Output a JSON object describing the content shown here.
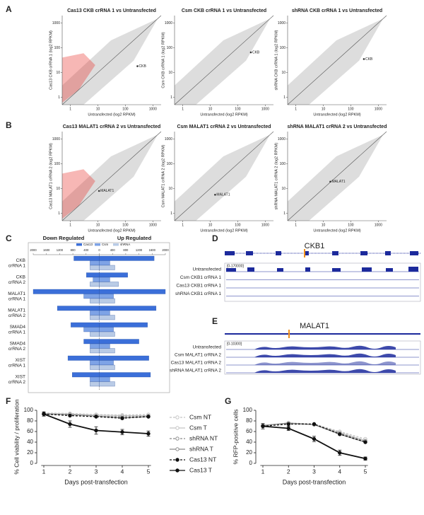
{
  "panel_labels": [
    "A",
    "B",
    "C",
    "D",
    "E",
    "F",
    "G"
  ],
  "chart_data": [
    {
      "type": "scatter",
      "title": "Cas13 CKB crRNA 1 vs Untransfected",
      "x_label": "Untransfected (log2 RPKM)",
      "y_label": "Cas13 CKB crRNA 1 (log2 RPKM)",
      "log_scale": true,
      "xlim": [
        0.5,
        2000
      ],
      "ylim": [
        0.5,
        2000
      ],
      "xticks": [
        1,
        10,
        100,
        1000
      ],
      "yticks": [
        1,
        10,
        100,
        1000
      ],
      "outlier_color": "#e8302a",
      "x": [
        275
      ],
      "values": [
        18
      ],
      "point_labels": [
        "CKB"
      ]
    },
    {
      "type": "scatter",
      "title": "Csm CKB crRNA 1 vs Untransfected",
      "x_label": "Untransfected (log2 RPKM)",
      "y_label": "Csm CKB crRNA 1 (log2 RPKM)",
      "log_scale": true,
      "xlim": [
        0.5,
        2000
      ],
      "ylim": [
        0.5,
        2000
      ],
      "xticks": [
        1,
        10,
        100,
        1000
      ],
      "yticks": [
        1,
        10,
        100,
        1000
      ],
      "x": [
        300
      ],
      "values": [
        65
      ],
      "point_labels": [
        "CKB"
      ]
    },
    {
      "type": "scatter",
      "title": "shRNA CKB crRNA 1 vs Untransfected",
      "x_label": "Untransfected (log2 RPKM)",
      "y_label": "shRNA CKB crRNA 1 (log2 RPKM)",
      "log_scale": true,
      "xlim": [
        0.5,
        2000
      ],
      "ylim": [
        0.5,
        2000
      ],
      "xticks": [
        1,
        10,
        100,
        1000
      ],
      "yticks": [
        1,
        10,
        100,
        1000
      ],
      "x": [
        300
      ],
      "values": [
        35
      ],
      "point_labels": [
        "CKB"
      ]
    },
    {
      "type": "scatter",
      "title": "Cas13 MALAT1 crRNA 2 vs Untransfected",
      "x_label": "Untransfected (log2 RPKM)",
      "y_label": "Cas13 MALAT1 crRNA 2 (log2 RPKM)",
      "log_scale": true,
      "xlim": [
        0.5,
        2000
      ],
      "ylim": [
        0.5,
        2000
      ],
      "xticks": [
        1,
        10,
        100,
        1000
      ],
      "yticks": [
        1,
        10,
        100,
        1000
      ],
      "outlier_color": "#e8302a",
      "x": [
        11
      ],
      "values": [
        8
      ],
      "point_labels": [
        "MALAT1"
      ]
    },
    {
      "type": "scatter",
      "title": "Csm MALAT1 crRNA 2 vs Untransfected",
      "x_label": "Untransfected (log2 RPKM)",
      "y_label": "Csm MALAT1 crRNA 2 (log2 RPKM)",
      "log_scale": true,
      "xlim": [
        0.5,
        2000
      ],
      "ylim": [
        0.5,
        2000
      ],
      "xticks": [
        1,
        10,
        100,
        1000
      ],
      "yticks": [
        1,
        10,
        100,
        1000
      ],
      "x": [
        15
      ],
      "values": [
        5.6
      ],
      "point_labels": [
        "MALAT1"
      ]
    },
    {
      "type": "scatter",
      "title": "shRNA MALAT1 crRNA 2 vs Untransfected",
      "x_label": "Untransfected (log2 RPKM)",
      "y_label": "shRNA MALAT1 crRNA 2 (log2 RPKM)",
      "log_scale": true,
      "xlim": [
        0.5,
        2000
      ],
      "ylim": [
        0.5,
        2000
      ],
      "xticks": [
        1,
        10,
        100,
        1000
      ],
      "yticks": [
        1,
        10,
        100,
        1000
      ],
      "x": [
        18
      ],
      "values": [
        19
      ],
      "point_labels": [
        "MALAT1"
      ]
    },
    {
      "type": "butterfly",
      "left_label": "Down Regulated",
      "right_label": "Up Regulated",
      "categories": [
        [
          "CKB",
          "crRNA 1"
        ],
        [
          "CKB",
          "crRNA 2"
        ],
        [
          "MALAT1",
          "crRNA 1"
        ],
        [
          "MALAT1",
          "crRNA 2"
        ],
        [
          "SMAD4",
          "crRNA 1"
        ],
        [
          "SMAD4",
          "crRNA 2"
        ],
        [
          "XIST",
          "crRNA 1"
        ],
        [
          "XIST",
          "crRNA 2"
        ]
      ],
      "xlim": [
        -2000,
        2000
      ],
      "xticks": [
        {
          "value": -2000,
          "label": "2000"
        },
        {
          "value": -1600,
          "label": "1600"
        },
        {
          "value": -1200,
          "label": "1200"
        },
        {
          "value": -800,
          "label": "800"
        },
        {
          "value": -400,
          "label": "400"
        },
        0,
        400,
        800,
        1200,
        1600,
        2000
      ],
      "series": [
        {
          "name": "Cas13",
          "color": "#3b6fd9",
          "down": [
            770,
            390,
            2000,
            1270,
            860,
            470,
            950,
            820
          ],
          "up": [
            1660,
            860,
            2000,
            1720,
            1460,
            1200,
            1500,
            1550
          ]
        },
        {
          "name": "Csm",
          "color": "#7ea3e6",
          "down": [
            280,
            190,
            470,
            280,
            470,
            280,
            280,
            280
          ],
          "up": [
            320,
            320,
            430,
            320,
            430,
            320,
            430,
            320
          ]
        },
        {
          "name": "shRNA",
          "color": "#b9cbe6",
          "down": [
            280,
            280,
            280,
            280,
            280,
            280,
            280,
            280
          ],
          "up": [
            470,
            580,
            470,
            470,
            470,
            470,
            470,
            470
          ]
        }
      ]
    },
    {
      "type": "line",
      "y_label": "% Cell viability / proliferation",
      "x_label": "Days post-transfection",
      "legend": "right",
      "x": [
        1,
        2,
        3,
        4,
        5
      ],
      "xlim": [
        0.9,
        5.1
      ],
      "ylim": [
        0,
        100
      ],
      "yticks": [
        0,
        20,
        40,
        60,
        80,
        100
      ],
      "series": [
        {
          "name": "Csm NT",
          "color": "#c4c4c4",
          "dashed": true,
          "marker": "open",
          "values": [
            95,
            94,
            92,
            91,
            92
          ]
        },
        {
          "name": "Csm T",
          "color": "#c4c4c4",
          "dashed": false,
          "marker": "open",
          "values": [
            94,
            93,
            91,
            90,
            90
          ]
        },
        {
          "name": "shRNA NT",
          "color": "#8a8a8a",
          "dashed": true,
          "marker": "open",
          "values": [
            93,
            91,
            89,
            88,
            89
          ]
        },
        {
          "name": "shRNA T",
          "color": "#8a8a8a",
          "dashed": false,
          "marker": "open",
          "values": [
            93,
            92,
            89,
            86,
            88
          ]
        },
        {
          "name": "Cas13 NT",
          "color": "#111111",
          "dashed": true,
          "marker": "filled",
          "values": [
            93,
            90,
            88,
            85,
            88
          ]
        },
        {
          "name": "Cas13 T",
          "color": "#111111",
          "dashed": false,
          "marker": "filled",
          "values": [
            93,
            74,
            62,
            59,
            56
          ],
          "errors": [
            4,
            6,
            7,
            5,
            5
          ]
        }
      ]
    },
    {
      "type": "line",
      "y_label": "% RFP-positive cells",
      "x_label": "Days post-transfection",
      "x": [
        1,
        2,
        3,
        4,
        5
      ],
      "xlim": [
        0.9,
        5.1
      ],
      "ylim": [
        0,
        100
      ],
      "yticks": [
        0,
        20,
        40,
        60,
        80,
        100
      ],
      "series": [
        {
          "name": "Csm NT",
          "color": "#c4c4c4",
          "dashed": true,
          "marker": "open",
          "values": [
            72,
            76,
            74,
            60,
            46
          ]
        },
        {
          "name": "Csm T",
          "color": "#c4c4c4",
          "dashed": false,
          "marker": "open",
          "values": [
            72,
            75,
            73,
            58,
            43
          ]
        },
        {
          "name": "shRNA NT",
          "color": "#8a8a8a",
          "dashed": true,
          "marker": "open",
          "values": [
            71,
            76,
            74,
            57,
            42
          ]
        },
        {
          "name": "shRNA T",
          "color": "#8a8a8a",
          "dashed": false,
          "marker": "open",
          "values": [
            71,
            76,
            73,
            55,
            40
          ]
        },
        {
          "name": "Cas13 NT",
          "color": "#111111",
          "dashed": true,
          "marker": "filled",
          "values": [
            70,
            74,
            74,
            55,
            40
          ]
        },
        {
          "name": "Cas13 T",
          "color": "#111111",
          "dashed": false,
          "marker": "filled",
          "values": [
            70,
            66,
            46,
            20,
            9
          ],
          "errors": [
            5,
            4,
            5,
            5,
            3
          ]
        }
      ]
    }
  ],
  "tracks": [
    {
      "title": "CKB1",
      "range": "[0-170000]",
      "rows": [
        "Untransfected",
        "Csm CKB1 crRNA 1",
        "Cas13 CKB1 crRNA 1",
        "shRNA CKB1 crRNA 1"
      ]
    },
    {
      "title": "MALAT1",
      "range": "[0-10300]",
      "rows": [
        "Untransfected",
        "Csm MALAT1 crRNA 2",
        "Cas13 MALAT1 crRNA 2",
        "shRNA MALAT1 crRNA 2"
      ]
    }
  ]
}
